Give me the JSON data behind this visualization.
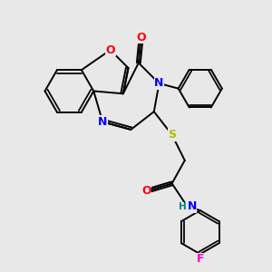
{
  "background_color": "#e8e8e8",
  "atom_colors": {
    "O": "#ff0000",
    "N": "#0000ff",
    "S": "#b8b800",
    "F": "#ff00cc",
    "H": "#008080",
    "C": "#000000"
  },
  "bond_color": "#000000",
  "bond_width": 1.4,
  "font_size_atoms": 9,
  "font_size_small": 7.5
}
